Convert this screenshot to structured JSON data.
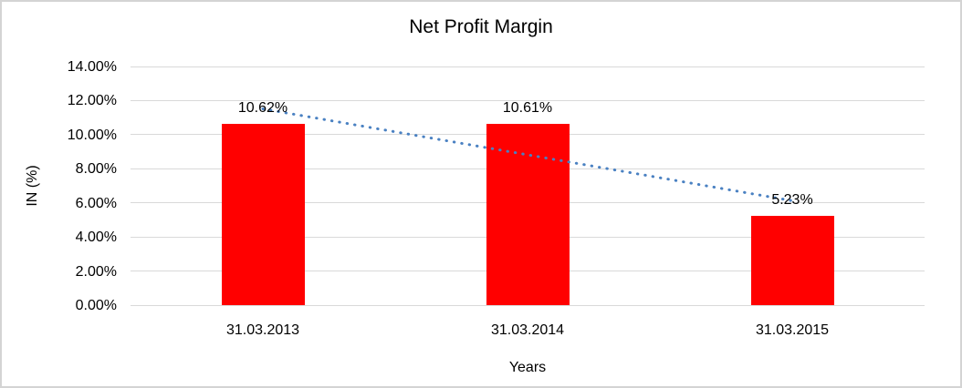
{
  "chart_data": {
    "type": "bar",
    "title": "Net Profit Margin",
    "categories": [
      "31.03.2013",
      "31.03.2014",
      "31.03.2015"
    ],
    "values": [
      10.62,
      10.61,
      5.23
    ],
    "data_labels": [
      "10.62%",
      "10.61%",
      "5.23%"
    ],
    "xlabel": "Years",
    "ylabel": "IN (%)",
    "ylim": [
      0,
      14
    ],
    "ytick_step": 2,
    "ytick_labels": [
      "0.00%",
      "2.00%",
      "4.00%",
      "6.00%",
      "8.00%",
      "10.00%",
      "12.00%",
      "14.00%"
    ],
    "grid": true,
    "legend_position": "none",
    "bar_color": "#ff0000",
    "gridline_color": "#d9d9d9",
    "trendline": {
      "type": "linear",
      "style": "dotted",
      "color": "#4a81c2"
    }
  }
}
